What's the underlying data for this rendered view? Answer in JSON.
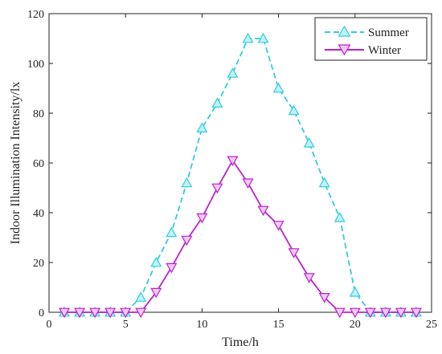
{
  "chart_data": {
    "type": "line",
    "xlabel": "Time/h",
    "ylabel": "Indoor Illumination Intensity/lx",
    "xlim": [
      0,
      25
    ],
    "ylim": [
      0,
      120
    ],
    "xticks": [
      0,
      5,
      10,
      15,
      20,
      25
    ],
    "yticks": [
      0,
      20,
      40,
      60,
      80,
      100,
      120
    ],
    "grid": false,
    "legend_position": "top-right",
    "x": [
      1,
      2,
      3,
      4,
      5,
      6,
      7,
      8,
      9,
      10,
      11,
      12,
      13,
      14,
      15,
      16,
      17,
      18,
      19,
      20,
      21,
      22,
      23,
      24
    ],
    "series": [
      {
        "name": "Summer",
        "color": "#33ccdd",
        "line_style": "dashed",
        "marker": "triangle-up",
        "values": [
          0,
          0,
          0,
          0,
          0,
          6,
          20,
          32,
          52,
          74,
          84,
          96,
          110,
          110,
          90,
          81,
          68,
          52,
          38,
          8,
          0,
          0,
          0,
          0
        ]
      },
      {
        "name": "Winter",
        "color": "#bb22cc",
        "line_style": "solid",
        "marker": "triangle-down",
        "values": [
          0,
          0,
          0,
          0,
          0,
          0,
          8,
          18,
          29,
          38,
          50,
          61,
          52,
          41,
          35,
          24,
          14,
          6,
          0,
          0,
          0,
          0,
          0,
          0
        ]
      }
    ]
  }
}
